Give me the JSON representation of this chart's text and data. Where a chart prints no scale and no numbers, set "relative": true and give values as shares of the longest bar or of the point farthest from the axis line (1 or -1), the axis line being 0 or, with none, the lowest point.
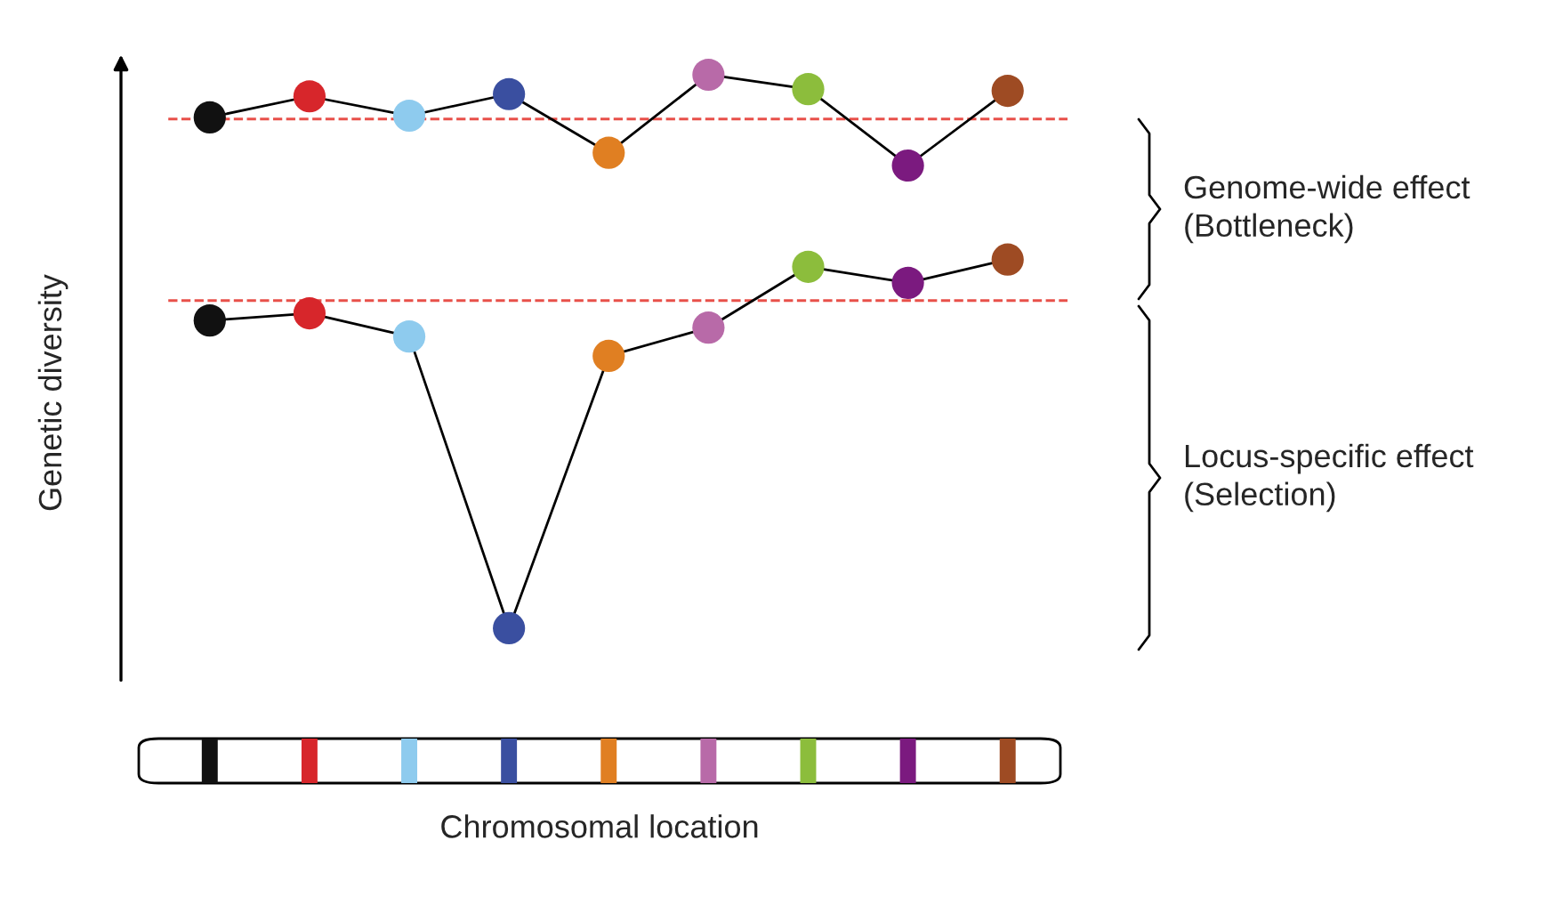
{
  "chart_data": {
    "type": "line",
    "relative": true,
    "ylabel": "Genetic diversity",
    "categories": [
      null,
      null,
      null,
      null,
      null,
      null,
      null,
      null,
      null
    ],
    "series": [
      {
        "color": "#000000",
        "colors": [
          "#111111",
          "#d7262b",
          "#8ecbee",
          "#3a4fa0",
          "#e07f22",
          "#b86aa8",
          "#8cbd3c",
          "#7b1a7f",
          "#9e4b23"
        ],
        "values": [
          0.923,
          0.961,
          0.926,
          0.965,
          0.859,
          1,
          0.974,
          0.836,
          0.971
        ]
      },
      {
        "color": "#000000",
        "colors": [
          "#111111",
          "#d7262b",
          "#8ecbee",
          "#3a4fa0",
          "#e07f22",
          "#b86aa8",
          "#8cbd3c",
          "#7b1a7f",
          "#9e4b23"
        ],
        "values": [
          0.556,
          0.569,
          0.527,
          0,
          0.492,
          0.543,
          0.653,
          0.624,
          0.666
        ]
      }
    ],
    "marker": "circle",
    "line_style": "solid",
    "ref_lines": [
      {
        "axis": "y",
        "value": 0.92,
        "color": "#e8504a",
        "line_style": "dashed"
      },
      {
        "axis": "y",
        "value": 0.592,
        "color": "#e8504a",
        "line_style": "dashed"
      }
    ],
    "annotations": [
      "Genome-wide effect\n(Bottleneck)",
      "Locus-specific effect\n(Selection)",
      "Chromosomal location"
    ]
  }
}
